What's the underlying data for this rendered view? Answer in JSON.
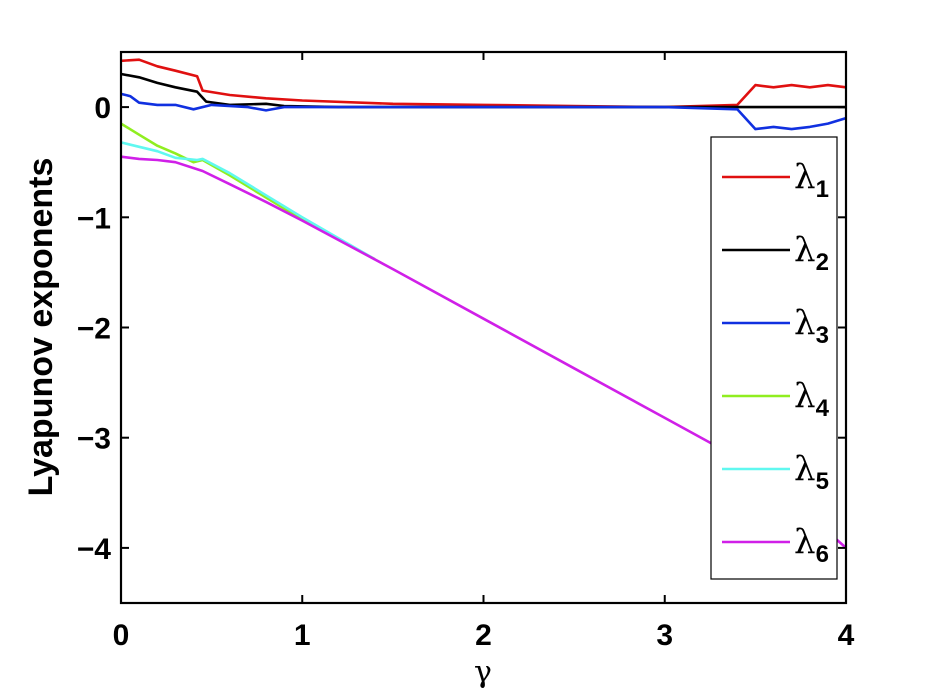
{
  "chart_data": {
    "type": "line",
    "xlabel": "γ",
    "ylabel": "Lyapunov exponents",
    "xlim": [
      0,
      4
    ],
    "ylim": [
      -4.5,
      0.5
    ],
    "xticks": [
      "0",
      "1",
      "2",
      "3",
      "4"
    ],
    "yticks": [
      "0",
      "−1",
      "−2",
      "−3",
      "−4"
    ],
    "xtick_values": [
      0,
      1,
      2,
      3,
      4
    ],
    "ytick_values": [
      0,
      -1,
      -2,
      -3,
      -4
    ],
    "grid": false,
    "legend_position": "right",
    "series": [
      {
        "name": "λ1",
        "label_main": "λ",
        "label_sub": "1",
        "color": "#e01010",
        "points": [
          [
            0,
            0.42
          ],
          [
            0.1,
            0.43
          ],
          [
            0.2,
            0.37
          ],
          [
            0.3,
            0.33
          ],
          [
            0.42,
            0.28
          ],
          [
            0.45,
            0.15
          ],
          [
            0.6,
            0.11
          ],
          [
            0.8,
            0.08
          ],
          [
            1.0,
            0.06
          ],
          [
            1.5,
            0.03
          ],
          [
            2.0,
            0.02
          ],
          [
            2.5,
            0.01
          ],
          [
            3.0,
            0.0
          ],
          [
            3.4,
            0.02
          ],
          [
            3.5,
            0.2
          ],
          [
            3.6,
            0.18
          ],
          [
            3.7,
            0.2
          ],
          [
            3.8,
            0.18
          ],
          [
            3.9,
            0.2
          ],
          [
            4.0,
            0.18
          ]
        ]
      },
      {
        "name": "λ2",
        "label_main": "λ",
        "label_sub": "2",
        "color": "#000000",
        "points": [
          [
            0,
            0.3
          ],
          [
            0.1,
            0.27
          ],
          [
            0.2,
            0.22
          ],
          [
            0.3,
            0.18
          ],
          [
            0.42,
            0.14
          ],
          [
            0.47,
            0.05
          ],
          [
            0.6,
            0.02
          ],
          [
            0.8,
            0.03
          ],
          [
            0.9,
            0.01
          ],
          [
            1.2,
            0.0
          ],
          [
            2.0,
            0.0
          ],
          [
            3.0,
            0.0
          ],
          [
            4.0,
            0.0
          ]
        ]
      },
      {
        "name": "λ3",
        "label_main": "λ",
        "label_sub": "3",
        "color": "#1030e0",
        "points": [
          [
            0,
            0.12
          ],
          [
            0.05,
            0.1
          ],
          [
            0.1,
            0.04
          ],
          [
            0.2,
            0.02
          ],
          [
            0.3,
            0.02
          ],
          [
            0.4,
            -0.02
          ],
          [
            0.5,
            0.02
          ],
          [
            0.7,
            0.0
          ],
          [
            0.8,
            -0.03
          ],
          [
            0.9,
            0.0
          ],
          [
            1.5,
            0.0
          ],
          [
            2.7,
            0.0
          ],
          [
            3.0,
            0.0
          ],
          [
            3.4,
            -0.02
          ],
          [
            3.5,
            -0.2
          ],
          [
            3.6,
            -0.18
          ],
          [
            3.7,
            -0.2
          ],
          [
            3.8,
            -0.18
          ],
          [
            3.9,
            -0.15
          ],
          [
            4.0,
            -0.1
          ]
        ]
      },
      {
        "name": "λ4",
        "label_main": "λ",
        "label_sub": "4",
        "color": "#90ee20",
        "points": [
          [
            0,
            -0.15
          ],
          [
            0.1,
            -0.25
          ],
          [
            0.2,
            -0.35
          ],
          [
            0.3,
            -0.42
          ],
          [
            0.4,
            -0.5
          ],
          [
            0.45,
            -0.48
          ],
          [
            0.6,
            -0.62
          ],
          [
            0.8,
            -0.82
          ],
          [
            1.0,
            -1.02
          ],
          [
            1.2,
            -1.2
          ],
          [
            1.4,
            -1.38
          ]
        ]
      },
      {
        "name": "λ5",
        "label_main": "λ",
        "label_sub": "5",
        "color": "#60f8f0",
        "points": [
          [
            0,
            -0.32
          ],
          [
            0.1,
            -0.36
          ],
          [
            0.2,
            -0.4
          ],
          [
            0.3,
            -0.46
          ],
          [
            0.42,
            -0.48
          ],
          [
            0.45,
            -0.47
          ],
          [
            0.6,
            -0.6
          ],
          [
            0.8,
            -0.8
          ],
          [
            1.0,
            -1.0
          ],
          [
            1.2,
            -1.19
          ],
          [
            1.4,
            -1.38
          ]
        ]
      },
      {
        "name": "λ6",
        "label_main": "λ",
        "label_sub": "6",
        "color": "#d020e8",
        "points": [
          [
            0,
            -0.45
          ],
          [
            0.1,
            -0.47
          ],
          [
            0.2,
            -0.48
          ],
          [
            0.3,
            -0.5
          ],
          [
            0.45,
            -0.58
          ],
          [
            0.6,
            -0.7
          ],
          [
            0.8,
            -0.86
          ],
          [
            1.0,
            -1.03
          ],
          [
            1.5,
            -1.47
          ],
          [
            2.0,
            -1.92
          ],
          [
            2.5,
            -2.37
          ],
          [
            3.0,
            -2.82
          ],
          [
            3.5,
            -3.27
          ],
          [
            4.0,
            -4.0
          ]
        ]
      }
    ]
  }
}
